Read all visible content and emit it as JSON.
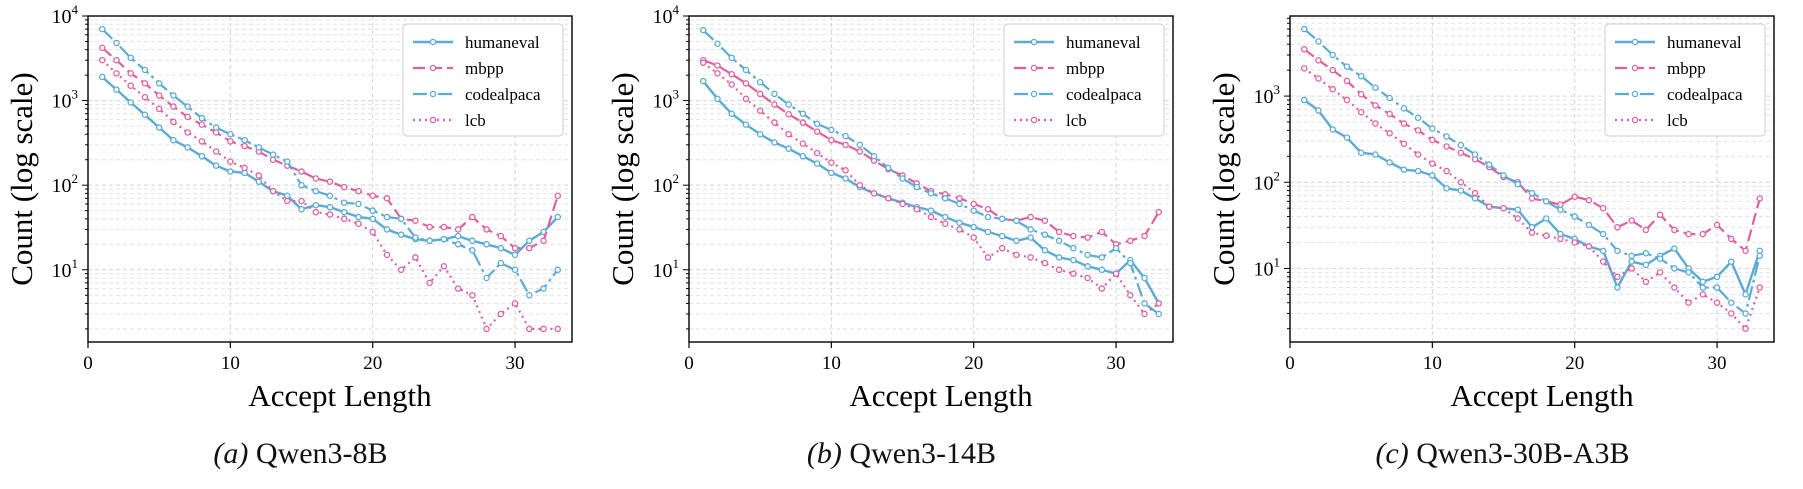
{
  "colors": {
    "blue": "#5aabd6",
    "pink": "#e0609e"
  },
  "chart_data": [
    {
      "type": "line",
      "caption_letter": "(a)",
      "caption_model": "Qwen3-8B",
      "xlabel": "Accept Length",
      "ylabel": "Count (log scale)",
      "yscale": "log",
      "xlim": [
        0,
        34
      ],
      "ylim": [
        1.4,
        10000
      ],
      "xticks": [
        0,
        10,
        20,
        30
      ],
      "x": [
        1,
        2,
        3,
        4,
        5,
        6,
        7,
        8,
        9,
        10,
        11,
        12,
        13,
        14,
        15,
        16,
        17,
        18,
        19,
        20,
        21,
        22,
        23,
        24,
        25,
        26,
        27,
        28,
        29,
        30,
        31,
        32,
        33
      ],
      "series": [
        {
          "name": "humaneval",
          "values": [
            1900,
            1350,
            950,
            680,
            480,
            340,
            280,
            220,
            170,
            145,
            140,
            110,
            85,
            75,
            52,
            58,
            55,
            48,
            42,
            40,
            30,
            26,
            23,
            22,
            23,
            25,
            22,
            20,
            18,
            15,
            22,
            28,
            42
          ]
        },
        {
          "name": "mbpp",
          "values": [
            4200,
            3000,
            2100,
            1600,
            1150,
            850,
            640,
            520,
            420,
            330,
            290,
            250,
            200,
            170,
            145,
            120,
            110,
            95,
            85,
            75,
            70,
            40,
            38,
            32,
            32,
            30,
            42,
            30,
            25,
            18,
            18,
            22,
            75
          ]
        },
        {
          "name": "codealpaca",
          "values": [
            7000,
            4800,
            3200,
            2300,
            1600,
            1150,
            850,
            620,
            480,
            400,
            340,
            280,
            230,
            190,
            100,
            85,
            75,
            62,
            60,
            50,
            42,
            40,
            24,
            22,
            23,
            20,
            17,
            8,
            12,
            10,
            5,
            6,
            10
          ]
        },
        {
          "name": "lcb",
          "values": [
            3000,
            2100,
            1500,
            1100,
            800,
            560,
            420,
            330,
            250,
            190,
            160,
            130,
            85,
            65,
            65,
            48,
            45,
            40,
            35,
            28,
            15,
            10,
            14,
            7,
            11,
            6,
            5,
            2,
            3,
            4,
            2,
            2,
            2
          ]
        }
      ]
    },
    {
      "type": "line",
      "caption_letter": "(b)",
      "caption_model": "Qwen3-14B",
      "xlabel": "Accept Length",
      "ylabel": "Count (log scale)",
      "yscale": "log",
      "xlim": [
        0,
        34
      ],
      "ylim": [
        1.4,
        10000
      ],
      "xticks": [
        0,
        10,
        20,
        30
      ],
      "x": [
        1,
        2,
        3,
        4,
        5,
        6,
        7,
        8,
        9,
        10,
        11,
        12,
        13,
        14,
        15,
        16,
        17,
        18,
        19,
        20,
        21,
        22,
        23,
        24,
        25,
        26,
        27,
        28,
        29,
        30,
        31,
        32,
        33
      ],
      "series": [
        {
          "name": "humaneval",
          "values": [
            1700,
            1050,
            700,
            520,
            400,
            320,
            270,
            220,
            180,
            140,
            120,
            95,
            80,
            70,
            62,
            55,
            50,
            42,
            36,
            32,
            28,
            25,
            22,
            24,
            17,
            14,
            13,
            11,
            10,
            9,
            13,
            8,
            4
          ]
        },
        {
          "name": "mbpp",
          "values": [
            3000,
            2600,
            2050,
            1600,
            1200,
            900,
            690,
            550,
            430,
            340,
            300,
            250,
            195,
            155,
            130,
            105,
            85,
            78,
            70,
            60,
            52,
            40,
            38,
            42,
            38,
            28,
            25,
            24,
            28,
            20,
            22,
            25,
            48
          ]
        },
        {
          "name": "codealpaca",
          "values": [
            6800,
            4700,
            3200,
            2300,
            1650,
            1200,
            900,
            700,
            530,
            450,
            380,
            300,
            220,
            160,
            120,
            95,
            80,
            70,
            60,
            50,
            42,
            40,
            38,
            30,
            26,
            22,
            18,
            15,
            14,
            18,
            12,
            4,
            3
          ]
        },
        {
          "name": "lcb",
          "values": [
            2800,
            2100,
            1550,
            1050,
            760,
            550,
            400,
            310,
            240,
            185,
            150,
            100,
            80,
            70,
            60,
            52,
            42,
            35,
            30,
            24,
            14,
            18,
            15,
            14,
            12,
            10,
            9,
            8,
            6,
            9,
            5,
            3,
            4
          ]
        }
      ]
    },
    {
      "type": "line",
      "caption_letter": "(c)",
      "caption_model": "Qwen3-30B-A3B",
      "xlabel": "Accept Length",
      "ylabel": "Count (log scale)",
      "yscale": "log",
      "xlim": [
        0,
        34
      ],
      "ylim": [
        1.4,
        8500
      ],
      "xticks": [
        0,
        10,
        20,
        30
      ],
      "x": [
        1,
        2,
        3,
        4,
        5,
        6,
        7,
        8,
        9,
        10,
        11,
        12,
        13,
        14,
        15,
        16,
        17,
        18,
        19,
        20,
        21,
        22,
        23,
        24,
        25,
        26,
        27,
        28,
        29,
        30,
        31,
        32,
        33
      ],
      "series": [
        {
          "name": "humaneval",
          "values": [
            900,
            680,
            410,
            330,
            220,
            210,
            170,
            140,
            135,
            120,
            85,
            80,
            65,
            52,
            50,
            48,
            30,
            38,
            25,
            22,
            18,
            16,
            6,
            12,
            11,
            14,
            17,
            10,
            7,
            8,
            12,
            5,
            16
          ]
        },
        {
          "name": "mbpp",
          "values": [
            3500,
            2600,
            2000,
            1500,
            1050,
            780,
            620,
            480,
            400,
            310,
            260,
            220,
            185,
            150,
            115,
            100,
            65,
            60,
            55,
            68,
            62,
            50,
            30,
            36,
            28,
            42,
            28,
            25,
            25,
            32,
            22,
            16,
            65
          ]
        },
        {
          "name": "codealpaca",
          "values": [
            6000,
            4300,
            3000,
            2200,
            1700,
            1250,
            950,
            720,
            560,
            420,
            340,
            270,
            210,
            160,
            120,
            95,
            75,
            60,
            48,
            40,
            32,
            25,
            16,
            14,
            15,
            13,
            10,
            9,
            6,
            6,
            4,
            3,
            14
          ]
        },
        {
          "name": "lcb",
          "values": [
            2100,
            1600,
            1200,
            900,
            650,
            480,
            370,
            280,
            210,
            165,
            135,
            100,
            75,
            52,
            50,
            38,
            26,
            24,
            22,
            20,
            18,
            12,
            8,
            10,
            7,
            9,
            6,
            4,
            5,
            4,
            3,
            2,
            6
          ]
        }
      ]
    }
  ]
}
